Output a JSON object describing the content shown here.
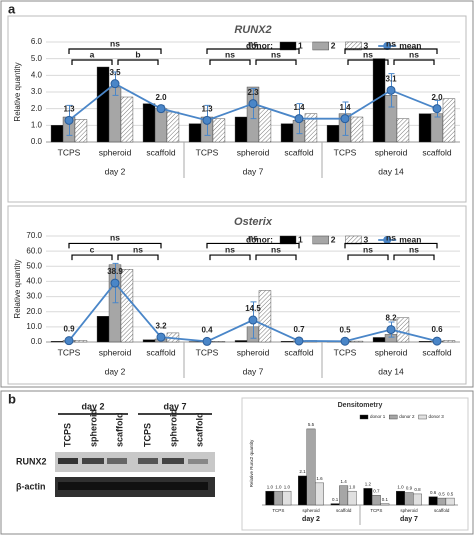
{
  "panels": {
    "a": "a",
    "b": "b"
  },
  "blot": {
    "groups": [
      "day 2",
      "day 7"
    ],
    "lanes": [
      "TCPS",
      "spheroid",
      "scaffold",
      "TCPS",
      "spheroid",
      "scaffold"
    ],
    "rows": [
      "RUNX2",
      "β-actin"
    ]
  },
  "chart_data": [
    {
      "type": "bar",
      "title": "RUNX2",
      "ylabel": "Relative quantity",
      "legend_title": "donor:",
      "categories": [
        "TCPS",
        "spheroid",
        "scaffold",
        "TCPS",
        "spheroid",
        "scaffold",
        "TCPS",
        "spheroid",
        "scaffold"
      ],
      "groups": [
        "day 2",
        "day 7",
        "day 14"
      ],
      "ylim": [
        0,
        6
      ],
      "yticks": [
        {
          "value": 0,
          "label": "0.0"
        },
        {
          "value": 1,
          "label": "1.0"
        },
        {
          "value": 2,
          "label": "2.0"
        },
        {
          "value": 3,
          "label": "3.0"
        },
        {
          "value": 4,
          "label": "4.0"
        },
        {
          "value": 5,
          "label": "5.0"
        },
        {
          "value": 6,
          "label": "6.0"
        }
      ],
      "grid": true,
      "series": [
        {
          "name": "1",
          "color": "#000000",
          "values": [
            1.0,
            4.5,
            2.3,
            1.1,
            1.5,
            1.1,
            1.0,
            5.0,
            1.7
          ]
        },
        {
          "name": "2",
          "color": "#a6a6a6",
          "values": [
            1.5,
            3.3,
            2.0,
            1.5,
            3.3,
            1.3,
            1.7,
            2.8,
            1.7
          ]
        },
        {
          "name": "3",
          "color": "#ffffff",
          "pattern": "hatch",
          "values": [
            1.35,
            2.7,
            1.8,
            1.4,
            2.0,
            1.7,
            1.5,
            1.4,
            2.6
          ]
        },
        {
          "name": "mean",
          "type": "line",
          "color": "#4a86c8",
          "values": [
            1.3,
            3.5,
            2.0,
            1.3,
            2.3,
            1.4,
            1.4,
            3.1,
            2.0
          ],
          "errors": [
            0.9,
            0.7,
            0.2,
            0.9,
            0.9,
            0.9,
            1.0,
            1.0,
            0.5
          ],
          "value_labels": [
            "1.3",
            "3.5",
            "2.0",
            "1.3",
            "2.3",
            "1.4",
            "1.4",
            "3.1",
            "2.0"
          ]
        }
      ],
      "brackets": [
        {
          "from": 0,
          "to": 2,
          "label": "ns"
        },
        {
          "from": 0,
          "to": 1,
          "label": "a"
        },
        {
          "from": 1,
          "to": 2,
          "label": "b"
        },
        {
          "from": 3,
          "to": 5,
          "label": "ns"
        },
        {
          "from": 3,
          "to": 4,
          "label": "ns"
        },
        {
          "from": 4,
          "to": 5,
          "label": "ns"
        },
        {
          "from": 6,
          "to": 8,
          "label": "ns"
        },
        {
          "from": 6,
          "to": 7,
          "label": "ns"
        },
        {
          "from": 7,
          "to": 8,
          "label": "ns"
        }
      ]
    },
    {
      "type": "bar",
      "title": "Osterix",
      "ylabel": "Relative quantity",
      "legend_title": "donor:",
      "categories": [
        "TCPS",
        "spheroid",
        "scaffold",
        "TCPS",
        "spheroid",
        "scaffold",
        "TCPS",
        "spheroid",
        "scaffold"
      ],
      "groups": [
        "day 2",
        "day 7",
        "day 14"
      ],
      "ylim": [
        0,
        70
      ],
      "yticks": [
        {
          "value": 0,
          "label": "0.0"
        },
        {
          "value": 10,
          "label": "10.0"
        },
        {
          "value": 20,
          "label": "20.0"
        },
        {
          "value": 30,
          "label": "30.0"
        },
        {
          "value": 40,
          "label": "40.0"
        },
        {
          "value": 50,
          "label": "50.0"
        },
        {
          "value": 60,
          "label": "60.0"
        },
        {
          "value": 70,
          "label": "70.0"
        }
      ],
      "grid": true,
      "series": [
        {
          "name": "1",
          "color": "#000000",
          "values": [
            0.5,
            17,
            1.5,
            0.3,
            1,
            0.5,
            0.4,
            3,
            0.5
          ]
        },
        {
          "name": "2",
          "color": "#a6a6a6",
          "values": [
            1,
            51,
            2,
            0.4,
            10,
            0.7,
            0.5,
            5,
            0.6
          ]
        },
        {
          "name": "3",
          "color": "#ffffff",
          "pattern": "hatch",
          "values": [
            1,
            48,
            6,
            0.4,
            34,
            1,
            0.6,
            16,
            1
          ]
        },
        {
          "name": "mean",
          "type": "line",
          "color": "#4a86c8",
          "values": [
            0.9,
            38.9,
            3.2,
            0.4,
            14.5,
            0.7,
            0.5,
            8.2,
            0.6
          ],
          "errors": [
            0.3,
            13,
            2,
            0.1,
            12,
            0.2,
            0.1,
            5,
            0.2
          ],
          "value_labels": [
            "0.9",
            "38.9",
            "3.2",
            "0.4",
            "14.5",
            "0.7",
            "0.5",
            "8.2",
            "0.6"
          ]
        }
      ],
      "brackets": [
        {
          "from": 0,
          "to": 2,
          "label": "ns"
        },
        {
          "from": 0,
          "to": 1,
          "label": "c"
        },
        {
          "from": 1,
          "to": 2,
          "label": "ns"
        },
        {
          "from": 3,
          "to": 5,
          "label": "ns"
        },
        {
          "from": 3,
          "to": 4,
          "label": "ns"
        },
        {
          "from": 4,
          "to": 5,
          "label": "ns"
        },
        {
          "from": 6,
          "to": 8,
          "label": "ns"
        },
        {
          "from": 6,
          "to": 7,
          "label": "ns"
        },
        {
          "from": 7,
          "to": 8,
          "label": "ns"
        }
      ]
    },
    {
      "type": "bar",
      "title": "Densitometry",
      "ylabel": "Relative Runx2 quantity",
      "categories": [
        "TCPS",
        "spheroid",
        "scaffold",
        "TCPS",
        "spheroid",
        "scaffold"
      ],
      "groups": [
        "day 2",
        "day 7"
      ],
      "ylim": [
        0,
        6
      ],
      "series": [
        {
          "name": "donor 1",
          "color": "#000000",
          "values": [
            1.0,
            2.1,
            0.1,
            1.2,
            1.0,
            0.6
          ],
          "value_labels": [
            "1.0",
            "2.1",
            "0.1",
            "1.2",
            "1.0",
            "0.6"
          ]
        },
        {
          "name": "donor 2",
          "color": "#a6a6a6",
          "values": [
            1.0,
            5.5,
            1.4,
            0.7,
            0.9,
            0.5
          ],
          "value_labels": [
            "1.0",
            "5.5",
            "1.4",
            "0.7",
            "0.9",
            "0.5"
          ]
        },
        {
          "name": "donor 3",
          "color": "#e0e0e0",
          "values": [
            1.0,
            1.6,
            1.0,
            0.1,
            0.8,
            0.5
          ],
          "value_labels": [
            "1.0",
            "1.6",
            "1.0",
            "0.1",
            "0.8",
            "0.5"
          ]
        }
      ]
    }
  ]
}
